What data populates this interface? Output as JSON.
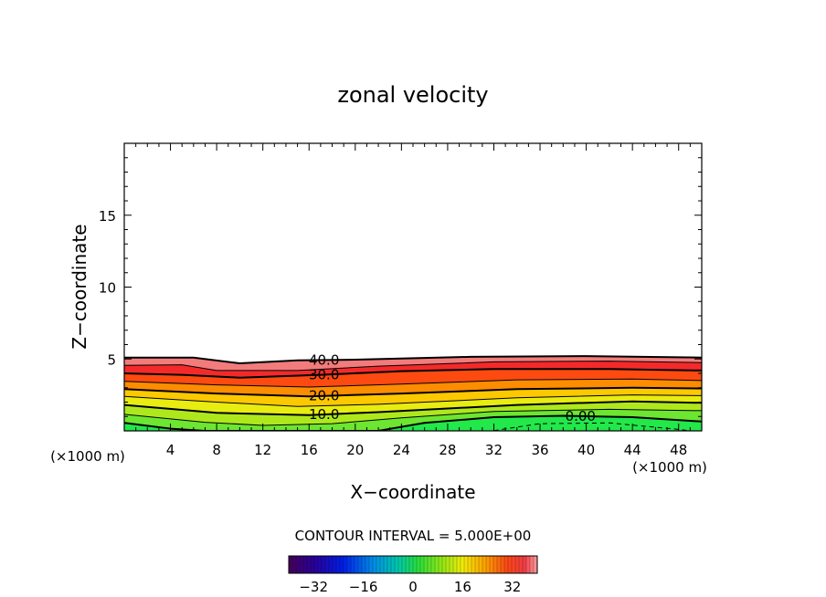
{
  "chart_data": {
    "type": "contour",
    "title": "zonal velocity",
    "xlabel": "X−coordinate",
    "ylabel": "Z−coordinate",
    "x_unit_left": "(×1000 m)",
    "x_unit_right": "(×1000 m)",
    "xlim": [
      0,
      50
    ],
    "ylim": [
      0,
      20
    ],
    "x_ticks": [
      4,
      8,
      12,
      16,
      20,
      24,
      28,
      32,
      36,
      40,
      44,
      48
    ],
    "x_tick_labels": [
      "4",
      "8",
      "12",
      "16",
      "20",
      "24",
      "28",
      "32",
      "36",
      "40",
      "44",
      "48"
    ],
    "y_ticks": [
      5,
      10,
      15
    ],
    "y_tick_labels": [
      "5",
      "10",
      "15"
    ],
    "contour_interval_label": "CONTOUR INTERVAL = 5.000E+00",
    "contour_interval": 5,
    "colorbar": {
      "range": [
        -40,
        40
      ],
      "ticks": [
        -32,
        -16,
        0,
        16,
        32
      ],
      "tick_labels": [
        "−32",
        "−16",
        "0",
        "16",
        "32"
      ]
    },
    "contours": [
      {
        "level": 40,
        "label": "40.0",
        "label_x": 17.3,
        "points": [
          [
            0,
            5.1
          ],
          [
            6,
            5.1
          ],
          [
            10,
            4.7
          ],
          [
            15,
            4.9
          ],
          [
            20,
            4.95
          ],
          [
            30,
            5.15
          ],
          [
            40,
            5.2
          ],
          [
            50,
            5.1
          ]
        ]
      },
      {
        "level": 35,
        "label": "",
        "points": [
          [
            0,
            4.55
          ],
          [
            5,
            4.6
          ],
          [
            8,
            4.2
          ],
          [
            15,
            4.2
          ],
          [
            22,
            4.5
          ],
          [
            32,
            4.8
          ],
          [
            42,
            4.85
          ],
          [
            50,
            4.75
          ]
        ]
      },
      {
        "level": 30,
        "label": "30.0",
        "label_x": 17.3,
        "points": [
          [
            0,
            4.0
          ],
          [
            5,
            3.9
          ],
          [
            10,
            3.7
          ],
          [
            17,
            3.9
          ],
          [
            24,
            4.15
          ],
          [
            32,
            4.3
          ],
          [
            42,
            4.3
          ],
          [
            50,
            4.2
          ]
        ]
      },
      {
        "level": 25,
        "label": "",
        "points": [
          [
            0,
            3.45
          ],
          [
            8,
            3.2
          ],
          [
            16,
            3.05
          ],
          [
            24,
            3.25
          ],
          [
            34,
            3.55
          ],
          [
            44,
            3.6
          ],
          [
            50,
            3.5
          ]
        ]
      },
      {
        "level": 20,
        "label": "20.0",
        "label_x": 17.3,
        "points": [
          [
            0,
            2.9
          ],
          [
            8,
            2.6
          ],
          [
            16,
            2.4
          ],
          [
            24,
            2.6
          ],
          [
            34,
            2.9
          ],
          [
            44,
            3.0
          ],
          [
            50,
            2.95
          ]
        ]
      },
      {
        "level": 15,
        "label": "",
        "points": [
          [
            0,
            2.4
          ],
          [
            8,
            2.0
          ],
          [
            15,
            1.7
          ],
          [
            22,
            1.85
          ],
          [
            34,
            2.3
          ],
          [
            44,
            2.5
          ],
          [
            50,
            2.45
          ]
        ]
      },
      {
        "level": 10,
        "label": "10.0",
        "label_x": 17.3,
        "points": [
          [
            0,
            1.8
          ],
          [
            8,
            1.25
          ],
          [
            16,
            1.1
          ],
          [
            22,
            1.3
          ],
          [
            34,
            1.8
          ],
          [
            44,
            2.05
          ],
          [
            50,
            1.95
          ]
        ]
      },
      {
        "level": 5,
        "label": "",
        "points": [
          [
            0,
            1.15
          ],
          [
            7,
            0.6
          ],
          [
            12,
            0.38
          ],
          [
            18,
            0.5
          ],
          [
            24,
            0.9
          ],
          [
            32,
            1.35
          ],
          [
            42,
            1.5
          ],
          [
            50,
            1.4
          ]
        ]
      },
      {
        "level": 0,
        "label": "0.00",
        "label_x": 39.5,
        "points": [
          [
            0,
            0.55
          ],
          [
            4,
            0.15
          ],
          [
            7,
            0.0
          ],
          [
            22,
            0.0
          ],
          [
            26,
            0.55
          ],
          [
            32,
            0.95
          ],
          [
            38,
            1.05
          ],
          [
            44,
            0.95
          ],
          [
            50,
            0.65
          ]
        ]
      },
      {
        "level": -5,
        "label": "",
        "dashed": true,
        "points": [
          [
            32,
            0.02
          ],
          [
            36,
            0.5
          ],
          [
            42,
            0.55
          ],
          [
            48,
            0.1
          ],
          [
            49,
            0.0
          ]
        ]
      }
    ],
    "fill_colors": {
      "below_0": "#10e860",
      "0_5": "#22e84a",
      "5_10": "#6ce630",
      "10_15": "#aee81c",
      "15_20": "#e8ec10",
      "20_25": "#fcc800",
      "25_30": "#fc8c00",
      "30_35": "#fc4a10",
      "35_40": "#f42a2a",
      "above_40": "#f27b7b"
    }
  }
}
